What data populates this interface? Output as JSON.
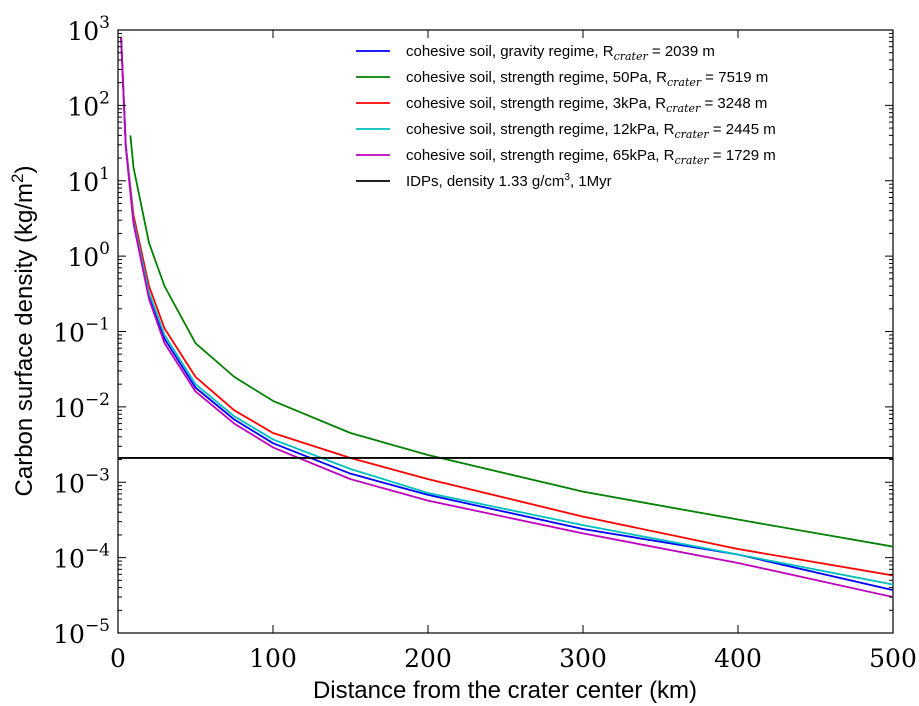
{
  "chart_data": {
    "type": "line",
    "xlabel": "Distance from the crater center (km)",
    "ylabel": "Carbon surface density (kg/m2)",
    "ylabel_main": "Carbon surface density (kg/m",
    "ylabel_sup": "2",
    "ylabel_close": ")",
    "xlim": [
      0,
      500
    ],
    "ylim_exp": [
      -5,
      3
    ],
    "yscale": "log",
    "grid": false,
    "legend_position": "top-right",
    "x_ticks": [
      "0",
      "100",
      "200",
      "300",
      "400",
      "500"
    ],
    "y_ticks": [
      {
        "base": "10",
        "exp": "−5"
      },
      {
        "base": "10",
        "exp": "−4"
      },
      {
        "base": "10",
        "exp": "−3"
      },
      {
        "base": "10",
        "exp": "−2"
      },
      {
        "base": "10",
        "exp": "−1"
      },
      {
        "base": "10",
        "exp": "0"
      },
      {
        "base": "10",
        "exp": "1"
      },
      {
        "base": "10",
        "exp": "2"
      },
      {
        "base": "10",
        "exp": "3"
      }
    ],
    "series": [
      {
        "label_main": "cohesive soil, gravity regime, R",
        "label_sub": "crater",
        "label_tail": " = 2039 m",
        "color": "#0000ff",
        "x": [
          2,
          5,
          10,
          20,
          30,
          50,
          75,
          100,
          150,
          200,
          300,
          400,
          500
        ],
        "y": [
          800,
          30,
          3,
          0.3,
          0.08,
          0.018,
          0.0068,
          0.0033,
          0.0013,
          0.00068,
          0.00024,
          0.00011,
          3.7e-05
        ]
      },
      {
        "label_main": "cohesive soil, strength regime, 50Pa, R",
        "label_sub": "crater",
        "label_tail": " = 7519 m",
        "color": "#008000",
        "x": [
          8,
          10,
          20,
          30,
          50,
          75,
          100,
          150,
          200,
          300,
          400,
          500
        ],
        "y": [
          40,
          15,
          1.5,
          0.4,
          0.07,
          0.025,
          0.012,
          0.0045,
          0.0023,
          0.00075,
          0.00032,
          0.00014
        ]
      },
      {
        "label_main": "cohesive soil, strength regime, 3kPa, R",
        "label_sub": "crater",
        "label_tail": " = 3248 m",
        "color": "#ff0000",
        "x": [
          2,
          5,
          10,
          20,
          30,
          50,
          75,
          100,
          150,
          200,
          300,
          400,
          500
        ],
        "y": [
          800,
          30,
          3.5,
          0.4,
          0.11,
          0.025,
          0.009,
          0.0045,
          0.0021,
          0.0011,
          0.00035,
          0.00013,
          5.8e-05
        ]
      },
      {
        "label_main": "cohesive soil, strength regime, 12kPa, R",
        "label_sub": "crater",
        "label_tail": " = 2445 m",
        "color": "#00bfbf",
        "x": [
          2,
          5,
          10,
          20,
          30,
          50,
          75,
          100,
          150,
          200,
          300,
          400,
          500
        ],
        "y": [
          800,
          30,
          3,
          0.33,
          0.09,
          0.02,
          0.0075,
          0.0037,
          0.0015,
          0.00072,
          0.00027,
          0.00011,
          4.4e-05
        ]
      },
      {
        "label_main": "cohesive soil, strength regime, 65kPa, R",
        "label_sub": "crater",
        "label_tail": " = 1729 m",
        "color": "#bf00bf",
        "x": [
          2,
          5,
          10,
          20,
          30,
          50,
          75,
          100,
          150,
          200,
          300,
          400,
          500
        ],
        "y": [
          800,
          28,
          2.7,
          0.27,
          0.07,
          0.016,
          0.006,
          0.0029,
          0.0011,
          0.00057,
          0.00021,
          8.5e-05,
          3e-05
        ]
      },
      {
        "label_main": "IDPs, density 1.33 g/cm",
        "label_sup": "3",
        "label_tail": ", 1Myr",
        "color": "#000000",
        "x": [
          0,
          500
        ],
        "y": [
          0.0021,
          0.0021
        ]
      }
    ]
  }
}
